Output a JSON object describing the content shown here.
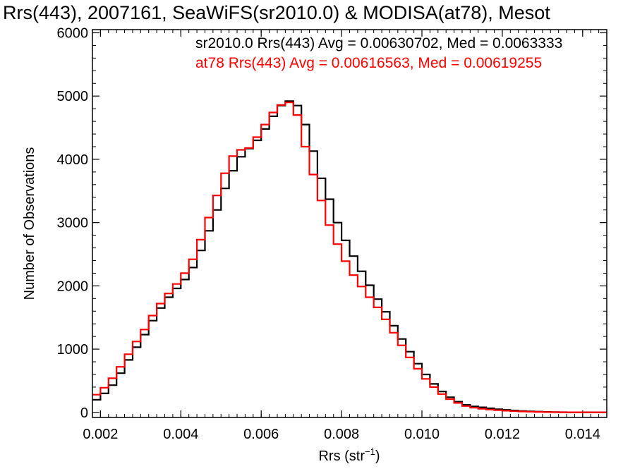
{
  "chart_data": {
    "type": "line",
    "title": "Rrs(443), 2007161, SeaWiFS(sr2010.0) & MODISA(at78), Mesot",
    "xlabel_main": "Rrs (str",
    "xlabel_sup": "−1",
    "xlabel_close": ")",
    "ylabel": "Number of Observations",
    "xlim": [
      0.0018,
      0.0146
    ],
    "ylim": [
      -80,
      6050
    ],
    "xticks": [
      0.002,
      0.004,
      0.006,
      0.008,
      0.01,
      0.012,
      0.014
    ],
    "xtick_labels": [
      "0.002",
      "0.004",
      "0.006",
      "0.008",
      "0.010",
      "0.012",
      "0.014"
    ],
    "yticks": [
      0,
      1000,
      2000,
      3000,
      4000,
      5000,
      6000
    ],
    "ytick_labels": [
      "0",
      "1000",
      "2000",
      "3000",
      "4000",
      "5000",
      "6000"
    ],
    "grid": false,
    "legend_position": "top-right",
    "series": [
      {
        "label": "sr2010.0 Rrs(443) Avg = 0.00630702, Med = 0.0063333",
        "color": "#000000",
        "points": [
          [
            0.0018,
            200
          ],
          [
            0.002,
            300
          ],
          [
            0.0022,
            430
          ],
          [
            0.0024,
            620
          ],
          [
            0.0026,
            830
          ],
          [
            0.0028,
            1030
          ],
          [
            0.003,
            1230
          ],
          [
            0.0032,
            1450
          ],
          [
            0.0034,
            1650
          ],
          [
            0.0036,
            1820
          ],
          [
            0.0038,
            1960
          ],
          [
            0.004,
            2100
          ],
          [
            0.0042,
            2290
          ],
          [
            0.0044,
            2560
          ],
          [
            0.0046,
            2870
          ],
          [
            0.0048,
            3200
          ],
          [
            0.005,
            3540
          ],
          [
            0.0052,
            3820
          ],
          [
            0.0054,
            4040
          ],
          [
            0.0056,
            4170
          ],
          [
            0.0058,
            4300
          ],
          [
            0.006,
            4480
          ],
          [
            0.0062,
            4680
          ],
          [
            0.0064,
            4850
          ],
          [
            0.0066,
            4920
          ],
          [
            0.0068,
            4850
          ],
          [
            0.007,
            4550
          ],
          [
            0.0072,
            4130
          ],
          [
            0.0074,
            3700
          ],
          [
            0.0076,
            3370
          ],
          [
            0.0078,
            3000
          ],
          [
            0.008,
            2720
          ],
          [
            0.0082,
            2470
          ],
          [
            0.0084,
            2230
          ],
          [
            0.0086,
            2010
          ],
          [
            0.0088,
            1790
          ],
          [
            0.009,
            1590
          ],
          [
            0.0092,
            1370
          ],
          [
            0.0094,
            1160
          ],
          [
            0.0096,
            960
          ],
          [
            0.0098,
            770
          ],
          [
            0.01,
            600
          ],
          [
            0.0102,
            450
          ],
          [
            0.0104,
            330
          ],
          [
            0.0106,
            240
          ],
          [
            0.0108,
            170
          ],
          [
            0.011,
            120
          ],
          [
            0.0112,
            95
          ],
          [
            0.0114,
            80
          ],
          [
            0.0116,
            65
          ],
          [
            0.0118,
            50
          ],
          [
            0.012,
            40
          ],
          [
            0.0122,
            30
          ],
          [
            0.0124,
            22
          ],
          [
            0.0126,
            16
          ],
          [
            0.0128,
            12
          ],
          [
            0.013,
            8
          ],
          [
            0.0132,
            6
          ],
          [
            0.0134,
            4
          ],
          [
            0.0136,
            3
          ],
          [
            0.0138,
            2
          ],
          [
            0.014,
            2
          ],
          [
            0.0142,
            1
          ],
          [
            0.0146,
            1
          ]
        ]
      },
      {
        "label": "at78 Rrs(443) Avg = 0.00616563, Med = 0.00619255",
        "color": "#ff0000",
        "points": [
          [
            0.0018,
            280
          ],
          [
            0.002,
            390
          ],
          [
            0.0022,
            540
          ],
          [
            0.0024,
            720
          ],
          [
            0.0026,
            920
          ],
          [
            0.0028,
            1120
          ],
          [
            0.003,
            1310
          ],
          [
            0.0032,
            1530
          ],
          [
            0.0034,
            1720
          ],
          [
            0.0036,
            1880
          ],
          [
            0.0038,
            2030
          ],
          [
            0.004,
            2200
          ],
          [
            0.0042,
            2420
          ],
          [
            0.0044,
            2730
          ],
          [
            0.0046,
            3080
          ],
          [
            0.0048,
            3430
          ],
          [
            0.005,
            3780
          ],
          [
            0.0052,
            4050
          ],
          [
            0.0054,
            4150
          ],
          [
            0.0056,
            4180
          ],
          [
            0.0058,
            4350
          ],
          [
            0.006,
            4550
          ],
          [
            0.0062,
            4740
          ],
          [
            0.0064,
            4860
          ],
          [
            0.0066,
            4900
          ],
          [
            0.0068,
            4700
          ],
          [
            0.007,
            4200
          ],
          [
            0.0072,
            3760
          ],
          [
            0.0074,
            3350
          ],
          [
            0.0076,
            2960
          ],
          [
            0.0078,
            2660
          ],
          [
            0.008,
            2390
          ],
          [
            0.0082,
            2170
          ],
          [
            0.0084,
            1990
          ],
          [
            0.0086,
            1820
          ],
          [
            0.0088,
            1660
          ],
          [
            0.009,
            1470
          ],
          [
            0.0092,
            1260
          ],
          [
            0.0094,
            1060
          ],
          [
            0.0096,
            870
          ],
          [
            0.0098,
            690
          ],
          [
            0.01,
            530
          ],
          [
            0.0102,
            400
          ],
          [
            0.0104,
            290
          ],
          [
            0.0106,
            210
          ],
          [
            0.0108,
            150
          ],
          [
            0.011,
            100
          ],
          [
            0.0112,
            75
          ],
          [
            0.0114,
            58
          ],
          [
            0.0116,
            45
          ],
          [
            0.0118,
            35
          ],
          [
            0.012,
            27
          ],
          [
            0.0122,
            20
          ],
          [
            0.0124,
            15
          ],
          [
            0.0126,
            11
          ],
          [
            0.0128,
            8
          ],
          [
            0.013,
            6
          ],
          [
            0.0132,
            4
          ],
          [
            0.0134,
            3
          ],
          [
            0.0136,
            2
          ],
          [
            0.0138,
            2
          ],
          [
            0.014,
            1
          ],
          [
            0.0142,
            1
          ],
          [
            0.0146,
            1
          ]
        ]
      }
    ]
  }
}
